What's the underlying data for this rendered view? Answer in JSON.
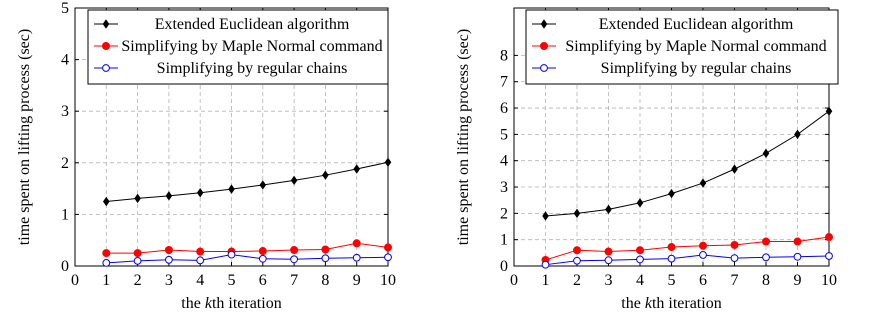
{
  "chart_data": [
    {
      "type": "line",
      "xlabel": "the kth iteration",
      "ylabel": "time spent on lifting process (sec)",
      "x": [
        1,
        2,
        3,
        4,
        5,
        6,
        7,
        8,
        9,
        10
      ],
      "xlim": [
        0,
        10
      ],
      "ylim": [
        0,
        5
      ],
      "xticks": [
        "0",
        "1",
        "2",
        "3",
        "4",
        "5",
        "6",
        "7",
        "8",
        "9",
        "10"
      ],
      "yticks": [
        "0",
        "1",
        "2",
        "3",
        "4",
        "5"
      ],
      "grid": true,
      "legend_position": "top",
      "series": [
        {
          "name": "Extended Euclidean algorithm",
          "color": "#000000",
          "marker": "diamond",
          "values": [
            1.25,
            1.31,
            1.36,
            1.42,
            1.49,
            1.57,
            1.66,
            1.76,
            1.88,
            2.01
          ]
        },
        {
          "name": "Simplifying by Maple Normal command",
          "color": "#ff0000",
          "marker": "filled-circle",
          "values": [
            0.25,
            0.25,
            0.31,
            0.28,
            0.28,
            0.29,
            0.31,
            0.32,
            0.44,
            0.36
          ]
        },
        {
          "name": "Simplifying by regular chains",
          "color": "#0000ff",
          "marker": "open-circle",
          "values": [
            0.06,
            0.1,
            0.12,
            0.11,
            0.22,
            0.14,
            0.13,
            0.15,
            0.16,
            0.17
          ]
        }
      ]
    },
    {
      "type": "line",
      "xlabel": "the kth iteration",
      "ylabel": "time spent on lifting process (sec)",
      "x": [
        1,
        2,
        3,
        4,
        5,
        6,
        7,
        8,
        9,
        10
      ],
      "xlim": [
        0,
        10
      ],
      "ylim": [
        0,
        9.8
      ],
      "xticks": [
        "0",
        "1",
        "2",
        "3",
        "4",
        "5",
        "6",
        "7",
        "8",
        "9",
        "10"
      ],
      "yticks": [
        "0",
        "1",
        "2",
        "3",
        "4",
        "5",
        "6",
        "7",
        "8"
      ],
      "grid": true,
      "legend_position": "top",
      "series": [
        {
          "name": "Extended Euclidean algorithm",
          "color": "#000000",
          "marker": "diamond",
          "values": [
            1.9,
            2.0,
            2.15,
            2.4,
            2.75,
            3.15,
            3.68,
            4.28,
            5.0,
            5.88
          ]
        },
        {
          "name": "Simplifying by Maple Normal command",
          "color": "#ff0000",
          "marker": "filled-circle",
          "values": [
            0.23,
            0.6,
            0.55,
            0.6,
            0.72,
            0.77,
            0.8,
            0.93,
            0.93,
            1.1
          ]
        },
        {
          "name": "Simplifying by regular chains",
          "color": "#0000ff",
          "marker": "open-circle",
          "values": [
            0.05,
            0.2,
            0.22,
            0.25,
            0.28,
            0.42,
            0.3,
            0.33,
            0.35,
            0.38
          ]
        }
      ]
    }
  ]
}
